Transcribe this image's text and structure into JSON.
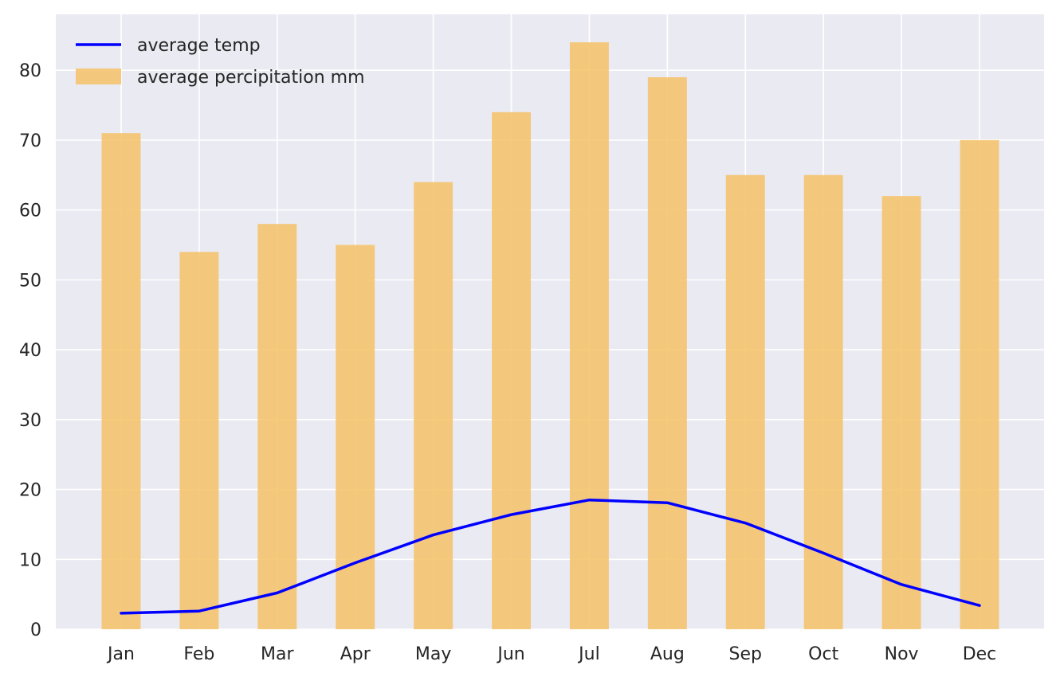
{
  "chart_data": {
    "type": "bar",
    "title": "",
    "xlabel": "",
    "ylabel": "",
    "categories": [
      "Jan",
      "Feb",
      "Mar",
      "Apr",
      "May",
      "Jun",
      "Jul",
      "Aug",
      "Sep",
      "Oct",
      "Nov",
      "Dec"
    ],
    "ylim": [
      0,
      88
    ],
    "yticks": [
      0,
      10,
      20,
      30,
      40,
      50,
      60,
      70,
      80
    ],
    "grid": true,
    "legend_placement": "top-left",
    "series": [
      {
        "name": "average temp",
        "type": "line",
        "color": "#0000ff",
        "values": [
          2.3,
          2.6,
          5.2,
          9.5,
          13.5,
          16.4,
          18.5,
          18.1,
          15.2,
          10.9,
          6.4,
          3.4
        ]
      },
      {
        "name": "average percipitation mm",
        "type": "bar",
        "color": "#f5c46f",
        "values": [
          71,
          54,
          58,
          55,
          64,
          74,
          84,
          79,
          65,
          65,
          62,
          70
        ]
      }
    ],
    "background_color": "#eaeaf2",
    "grid_color": "#ffffff"
  }
}
